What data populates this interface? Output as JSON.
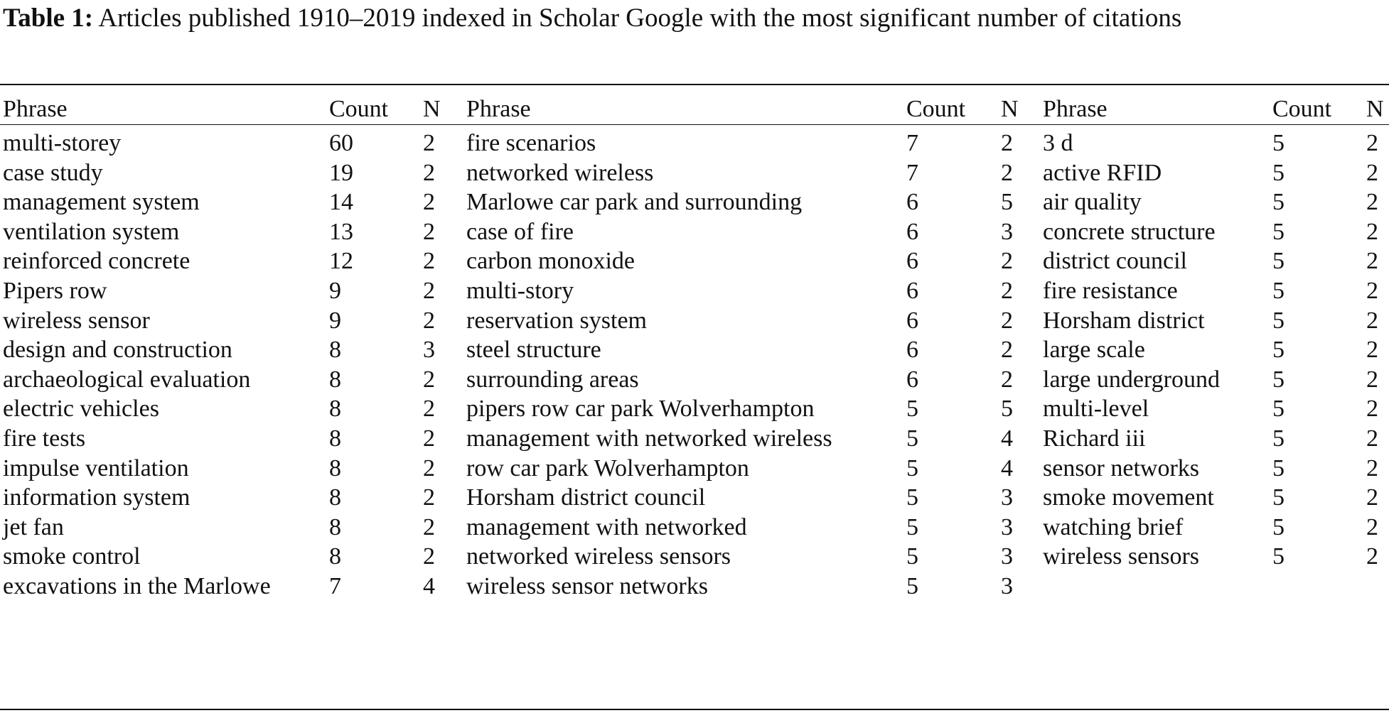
{
  "caption": {
    "label": "Table 1:",
    "text": "Articles published 1910–2019 indexed in Scholar Google with the most significant number of citations"
  },
  "headers": [
    "Phrase",
    "Count",
    "N",
    "Phrase",
    "Count",
    "N",
    "Phrase",
    "Count",
    "N"
  ],
  "rows": [
    [
      "multi-storey",
      "60",
      "2",
      "fire scenarios",
      "7",
      "2",
      "3 d",
      "5",
      "2"
    ],
    [
      "case study",
      "19",
      "2",
      "networked wireless",
      "7",
      "2",
      "active RFID",
      "5",
      "2"
    ],
    [
      "management system",
      "14",
      "2",
      "Marlowe car park and surrounding",
      "6",
      "5",
      "air quality",
      "5",
      "2"
    ],
    [
      "ventilation system",
      "13",
      "2",
      "case of fire",
      "6",
      "3",
      "concrete structure",
      "5",
      "2"
    ],
    [
      "reinforced concrete",
      "12",
      "2",
      "carbon monoxide",
      "6",
      "2",
      "district council",
      "5",
      "2"
    ],
    [
      "Pipers row",
      "9",
      "2",
      "multi-story",
      "6",
      "2",
      "fire resistance",
      "5",
      "2"
    ],
    [
      "wireless sensor",
      "9",
      "2",
      "reservation system",
      "6",
      "2",
      "Horsham district",
      "5",
      "2"
    ],
    [
      "design and construction",
      "8",
      "3",
      "steel structure",
      "6",
      "2",
      "large scale",
      "5",
      "2"
    ],
    [
      "archaeological evaluation",
      "8",
      "2",
      "surrounding areas",
      "6",
      "2",
      "large underground",
      "5",
      "2"
    ],
    [
      "electric vehicles",
      "8",
      "2",
      "pipers row car park Wolverhampton",
      "5",
      "5",
      "multi-level",
      "5",
      "2"
    ],
    [
      "fire tests",
      "8",
      "2",
      "management with networked wireless",
      "5",
      "4",
      "Richard iii",
      "5",
      "2"
    ],
    [
      "impulse ventilation",
      "8",
      "2",
      "row car park Wolverhampton",
      "5",
      "4",
      "sensor networks",
      "5",
      "2"
    ],
    [
      "information system",
      "8",
      "2",
      "Horsham district council",
      "5",
      "3",
      "smoke movement",
      "5",
      "2"
    ],
    [
      "jet fan",
      "8",
      "2",
      "management with networked",
      "5",
      "3",
      "watching brief",
      "5",
      "2"
    ],
    [
      "smoke control",
      "8",
      "2",
      "networked wireless sensors",
      "5",
      "3",
      "wireless sensors",
      "5",
      "2"
    ],
    [
      "excavations in the Marlowe",
      "7",
      "4",
      "wireless sensor networks",
      "5",
      "3",
      "",
      "",
      ""
    ]
  ]
}
